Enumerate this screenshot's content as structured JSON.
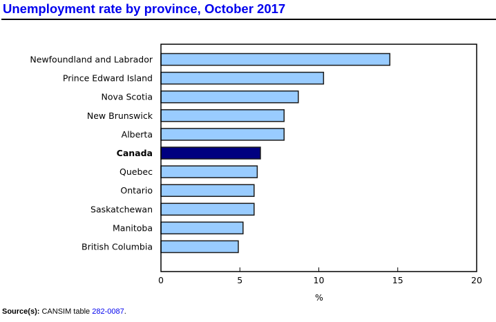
{
  "header": {
    "title": "Unemployment rate by province, October 2017"
  },
  "footer": {
    "source_label": "Source(s):",
    "source_text": "CANSIM table",
    "source_link": "282-0087",
    "source_end": "."
  },
  "colors": {
    "title": "#0000ee",
    "bar": "#99ccff",
    "bar_highlight": "#000080",
    "bar_border": "#1a1a1a"
  },
  "chart_data": {
    "type": "bar",
    "orientation": "horizontal",
    "title": "Unemployment rate by province, October 2017",
    "xlabel": "%",
    "ylabel": "",
    "xlim": [
      0,
      20
    ],
    "xticks": [
      0,
      5,
      10,
      15,
      20
    ],
    "grid": false,
    "legend": "none",
    "categories": [
      "Newfoundland and Labrador",
      "Prince Edward Island",
      "Nova Scotia",
      "New Brunswick",
      "Alberta",
      "Canada",
      "Quebec",
      "Ontario",
      "Saskatchewan",
      "Manitoba",
      "British Columbia"
    ],
    "values": [
      14.5,
      10.3,
      8.7,
      7.8,
      7.8,
      6.3,
      6.1,
      5.9,
      5.9,
      5.2,
      4.9
    ],
    "highlight": [
      "Canada"
    ]
  }
}
